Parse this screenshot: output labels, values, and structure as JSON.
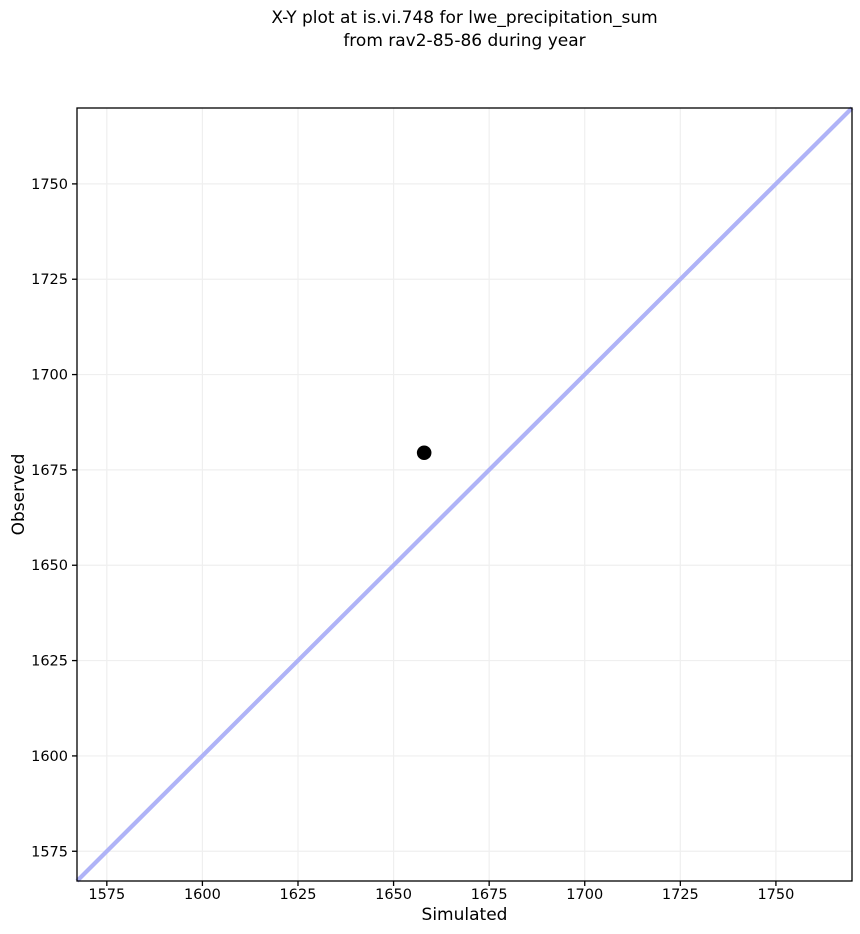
{
  "figure": {
    "title_line1": "X-Y plot at is.vi.748 for lwe_precipitation_sum",
    "title_line2": "from rav2-85-86 during year",
    "background": "#ffffff"
  },
  "chart_data": {
    "type": "scatter",
    "title": "X-Y plot at is.vi.748 for lwe_precipitation_sum from rav2-85-86 during year",
    "xlabel": "Simulated",
    "ylabel": "Observed",
    "xlim": [
      1567.2,
      1769.9
    ],
    "ylim": [
      1567.2,
      1769.9
    ],
    "xticks": [
      1575,
      1600,
      1625,
      1650,
      1675,
      1700,
      1725,
      1750
    ],
    "yticks": [
      1575,
      1600,
      1625,
      1650,
      1675,
      1700,
      1725,
      1750
    ],
    "grid": true,
    "legend": false,
    "points": [
      {
        "x": 1658,
        "y": 1679.5
      }
    ],
    "reference_line": {
      "type": "identity",
      "slope": 1,
      "intercept": 0
    },
    "colors": {
      "point": "#000000",
      "reference_line": "#afb3f7",
      "grid": "#efefef",
      "spine": "#000000",
      "text": "#000000"
    }
  }
}
